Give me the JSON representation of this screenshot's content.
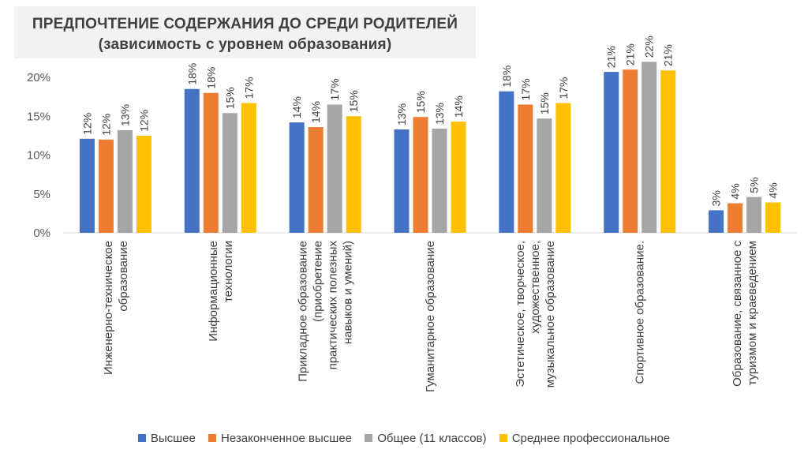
{
  "header": {
    "title_line1": "ПРЕДПОЧТЕНИЕ СОДЕРЖАНИЯ ДО СРЕДИ РОДИТЕЛЕЙ",
    "title_line2": "(зависимость с уровнем образования)"
  },
  "chart_data": {
    "type": "bar",
    "title": "ПРЕДПОЧТЕНИЕ СОДЕРЖАНИЯ ДО СРЕДИ РОДИТЕЛЕЙ (зависимость с уровнем образования)",
    "categories": [
      [
        "Инженерно-техническое",
        "образование"
      ],
      [
        "Информационные",
        "технологии"
      ],
      [
        "Прикладное образование",
        "(приобретение",
        "практических полезных",
        "навыков и умений)"
      ],
      [
        "Гуманитарное образование"
      ],
      [
        "Эстетическое, творческое,",
        "художественное,",
        "музыкальное образование"
      ],
      [
        "Спортивное  образование."
      ],
      [
        "Образование, связанное с",
        "туризмом и краеведением"
      ]
    ],
    "series": [
      {
        "name": "Высшее",
        "color": "#4472c4",
        "values": [
          12.1,
          18.5,
          14.2,
          13.3,
          18.2,
          20.7,
          2.9
        ],
        "labels": [
          "12%",
          "18%",
          "14%",
          "13%",
          "18%",
          "21%",
          "3%"
        ]
      },
      {
        "name": "Незаконченное высшее",
        "color": "#ed7d31",
        "values": [
          12.0,
          18.0,
          13.6,
          14.9,
          16.5,
          21.0,
          3.8
        ],
        "labels": [
          "12%",
          "18%",
          "14%",
          "15%",
          "17%",
          "21%",
          "4%"
        ]
      },
      {
        "name": "Общее (11 классов)",
        "color": "#a5a5a5",
        "values": [
          13.2,
          15.4,
          16.5,
          13.4,
          14.7,
          22.0,
          4.6
        ],
        "labels": [
          "13%",
          "15%",
          "17%",
          "13%",
          "15%",
          "22%",
          "5%"
        ]
      },
      {
        "name": "Среднее профессиональное",
        "color": "#ffc000",
        "values": [
          12.5,
          16.7,
          15.0,
          14.3,
          16.7,
          20.9,
          3.9
        ],
        "labels": [
          "12%",
          "17%",
          "15%",
          "14%",
          "17%",
          "21%",
          "4%"
        ]
      }
    ],
    "y_ticks": [
      "0%",
      "5%",
      "10%",
      "15%",
      "20%"
    ],
    "ylim": [
      0,
      20
    ],
    "legend_position": "bottom",
    "grid": false
  }
}
